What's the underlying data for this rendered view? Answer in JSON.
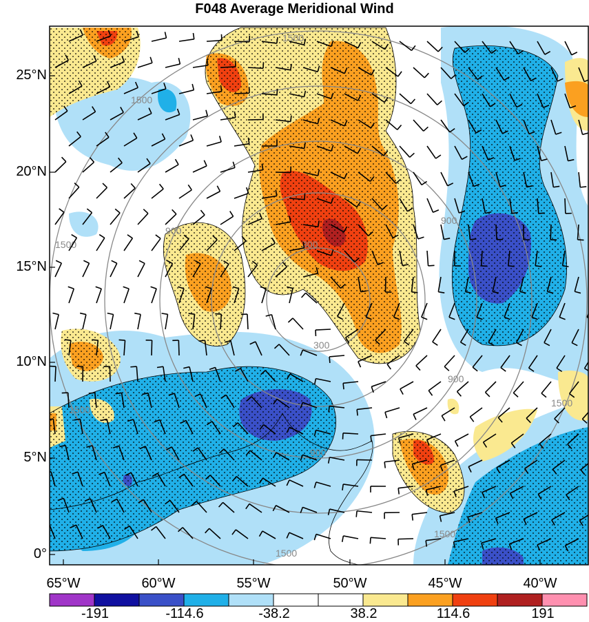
{
  "title": "F048 Average Meridional Wind",
  "map": {
    "lat_labels": [
      "25°N",
      "20°N",
      "15°N",
      "10°N",
      "5°N",
      "0°"
    ],
    "lon_labels": [
      "65°W",
      "60°W",
      "55°W",
      "50°W",
      "45°W",
      "40°W"
    ],
    "range_ring_labels": [
      "300",
      "300",
      "900",
      "900",
      "900",
      "900",
      "1500",
      "1500",
      "1500",
      "1500",
      "1500",
      "1500",
      "1500"
    ],
    "colorbar": {
      "labels": [
        "-191",
        "-114.6",
        "-38.2",
        "38.2",
        "114.6",
        "191"
      ],
      "colors": [
        "#a035c8",
        "#1010a0",
        "#3a50c8",
        "#20b0e8",
        "#b0e0f8",
        "#ffffff",
        "#ffffff",
        "#fae990",
        "#fba020",
        "#f04010",
        "#b02020",
        "#ff90b0"
      ]
    },
    "shading_colors": {
      "strong_negative": "#3a50c8",
      "negative": "#20b0e8",
      "weak_negative": "#b0e0f8",
      "weak_positive": "#fae990",
      "positive": "#fba020",
      "strong_positive": "#f04010",
      "very_strong_positive": "#b02020"
    }
  }
}
